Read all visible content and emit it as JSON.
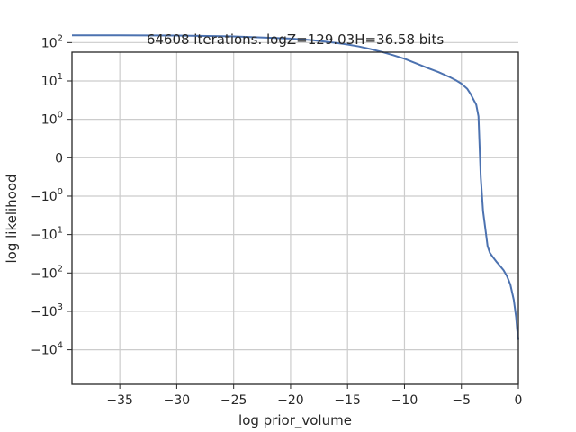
{
  "chart_data": {
    "type": "line",
    "title": "64608 iterations. logZ=129.03H=36.58 bits",
    "xlabel": "log prior_volume",
    "ylabel": "log likelihood",
    "xlim": [
      -39.2,
      0
    ],
    "y_scale": "symlog",
    "grid": true,
    "x_ticks": [
      {
        "value": -35,
        "label": "−35"
      },
      {
        "value": -30,
        "label": "−30"
      },
      {
        "value": -25,
        "label": "−25"
      },
      {
        "value": -20,
        "label": "−20"
      },
      {
        "value": -15,
        "label": "−15"
      },
      {
        "value": -10,
        "label": "−10"
      },
      {
        "value": -5,
        "label": "−5"
      },
      {
        "value": 0,
        "label": "0"
      }
    ],
    "y_ticks": [
      {
        "value": 100,
        "base": "10",
        "exp": "2"
      },
      {
        "value": 10,
        "base": "10",
        "exp": "1"
      },
      {
        "value": 1,
        "base": "10",
        "exp": "0"
      },
      {
        "value": 0,
        "base": "0",
        "exp": ""
      },
      {
        "value": -1,
        "base": "−10",
        "exp": "0"
      },
      {
        "value": -10,
        "base": "−10",
        "exp": "1"
      },
      {
        "value": -100,
        "base": "−10",
        "exp": "2"
      },
      {
        "value": -1000,
        "base": "−10",
        "exp": "3"
      },
      {
        "value": -10000,
        "base": "−10",
        "exp": "4"
      }
    ],
    "series": [
      {
        "color": "#4c72b0",
        "x": [
          -39.2,
          -35,
          -30,
          -25,
          -20,
          -18,
          -16,
          -15,
          -14,
          -13,
          -12,
          -11,
          -10,
          -9,
          -8,
          -7,
          -6,
          -5.5,
          -5,
          -4.5,
          -4.2,
          -3.9,
          -3.7,
          -3.5,
          -3.3,
          -3.1,
          -2.9,
          -2.7,
          -2.5,
          -2.2,
          -1.9,
          -1.6,
          -1.3,
          -1.0,
          -0.7,
          -0.4,
          -0.2,
          -0.1,
          0
        ],
        "y": [
          155,
          155,
          153,
          145,
          127,
          115,
          98,
          89,
          79,
          68,
          57,
          47,
          38,
          29,
          22,
          17,
          12.5,
          10.5,
          8.5,
          6.3,
          4.6,
          3.1,
          2.4,
          1.2,
          -0.5,
          -2.5,
          -7,
          -20,
          -30,
          -40,
          -52,
          -66,
          -85,
          -120,
          -200,
          -500,
          -1400,
          -3000,
          -5500
        ]
      }
    ]
  }
}
